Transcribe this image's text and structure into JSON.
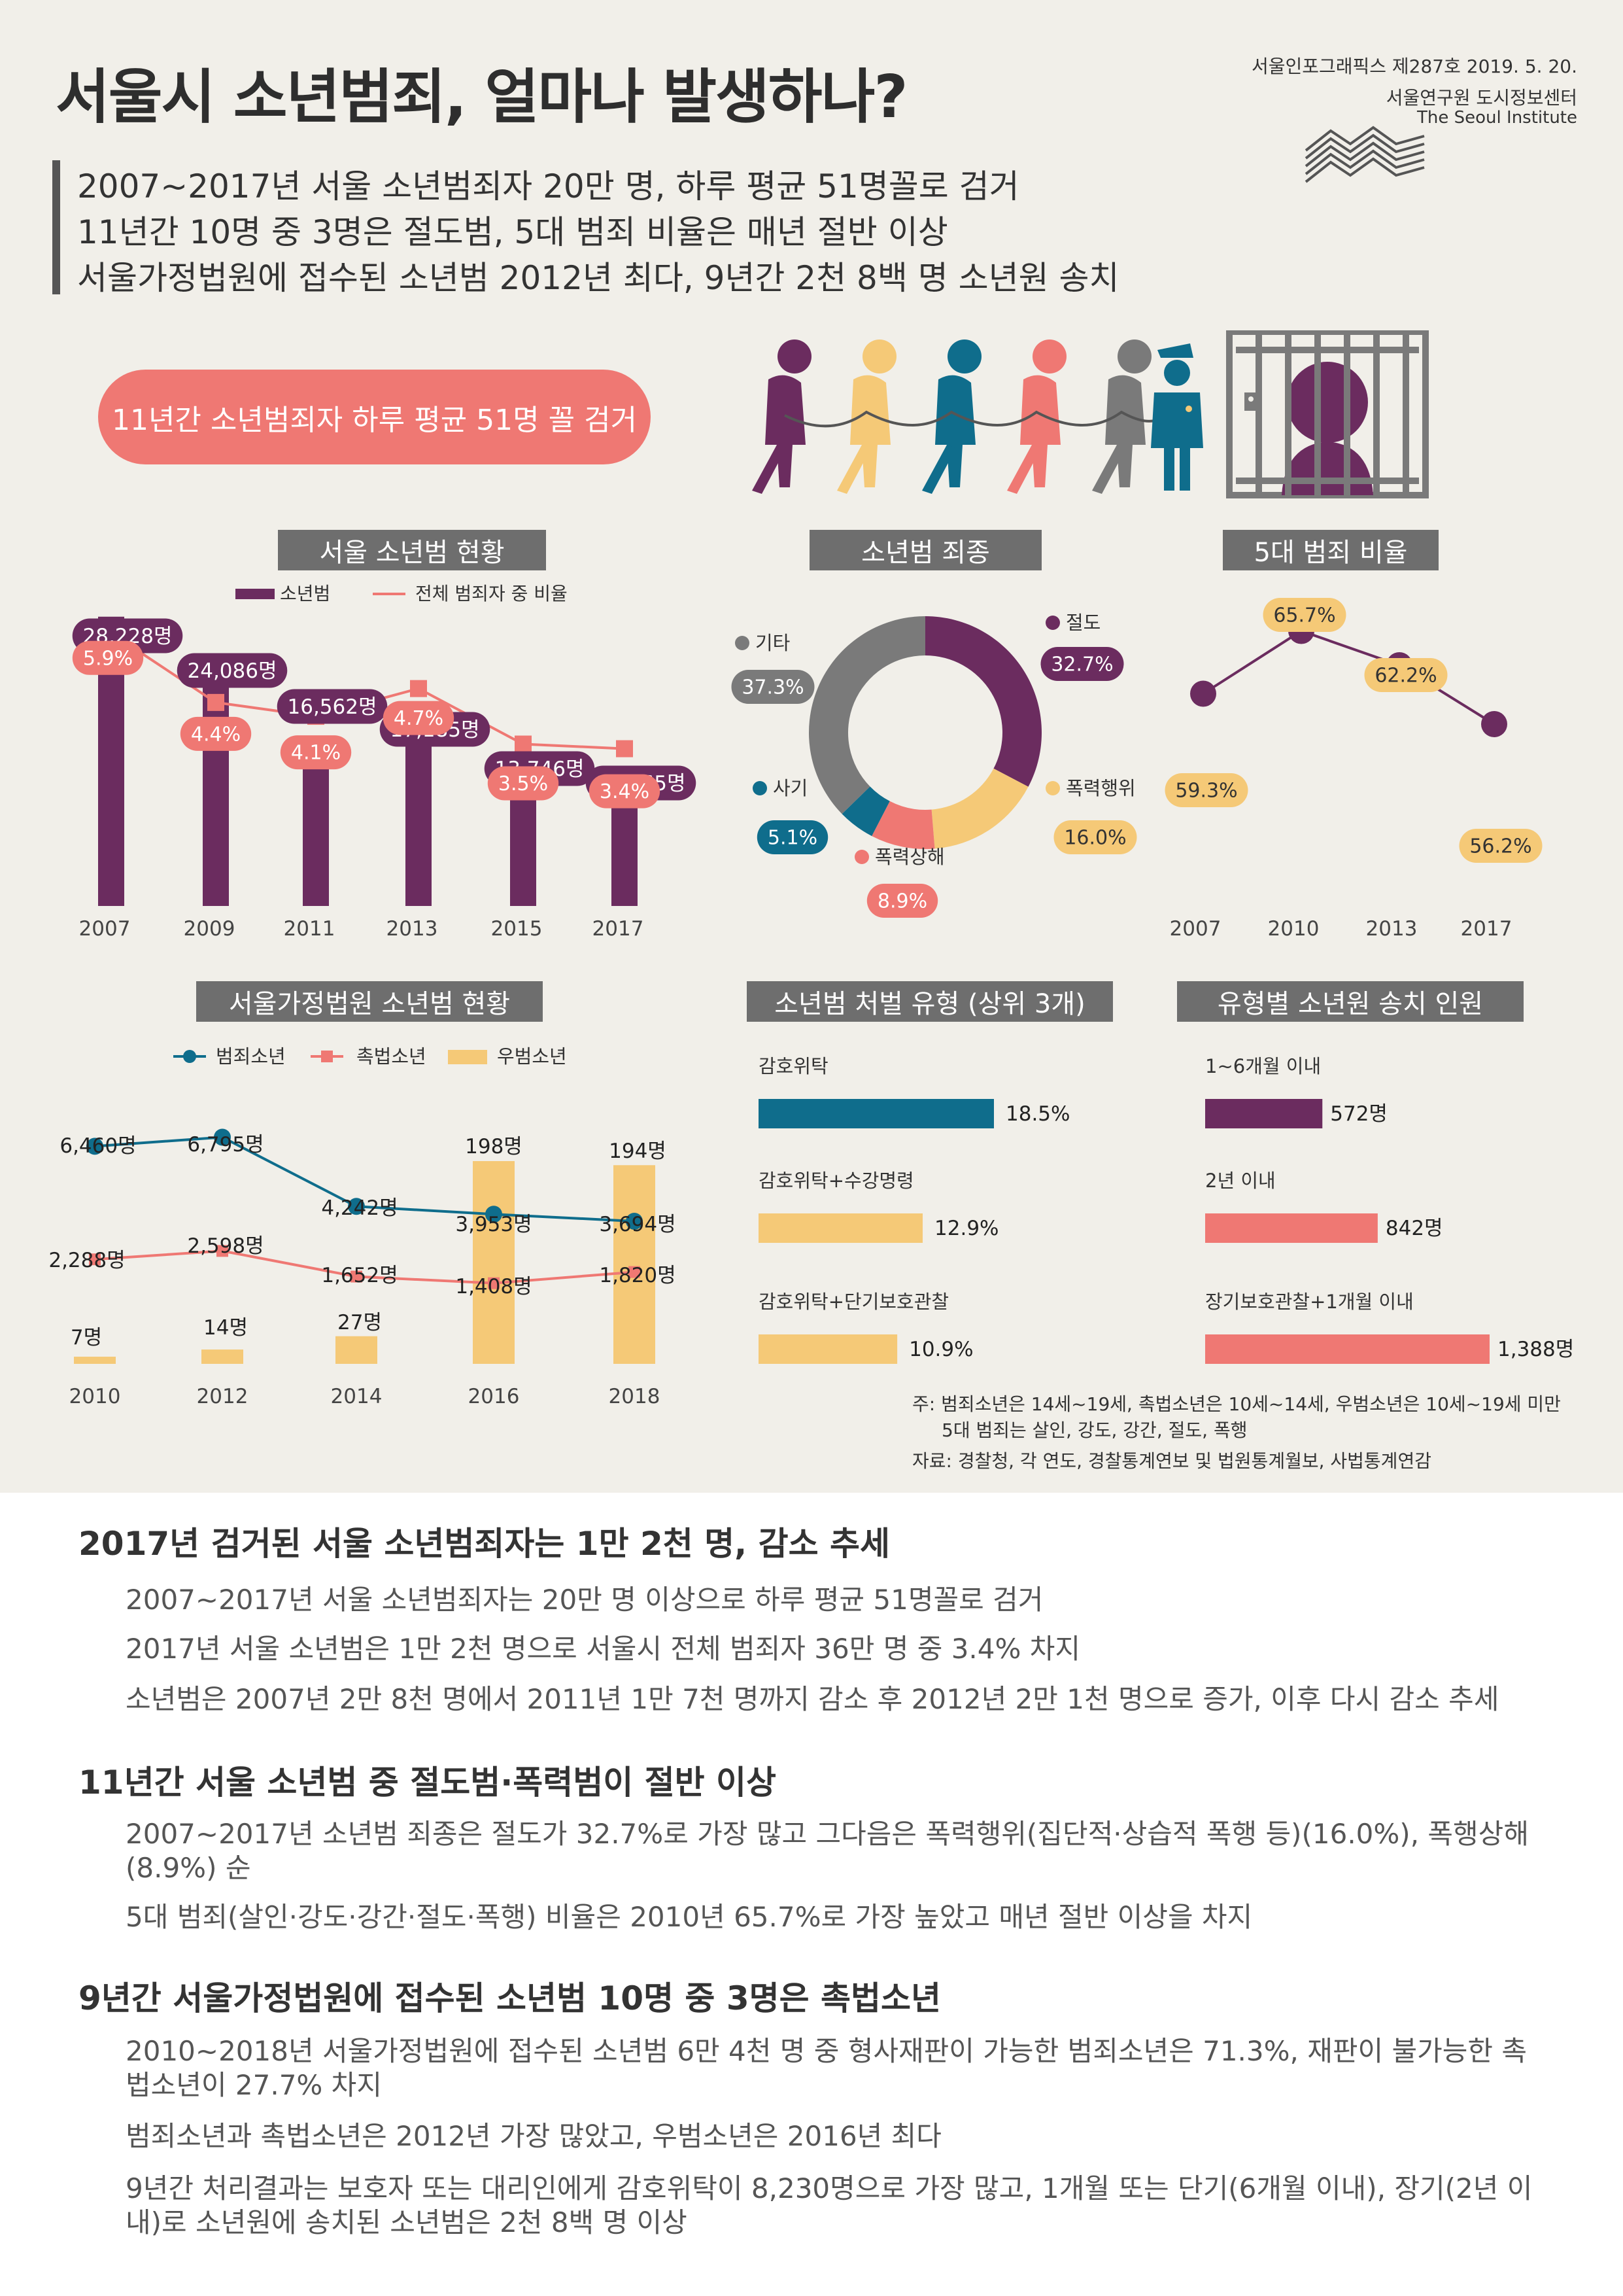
{
  "header": {
    "title": "서울시 소년범죄, 얼마나 발생하나?",
    "issue": "서울인포그래픽스 제287호 2019. 5. 20.",
    "institute_ko": "서울연구원 도시정보센터",
    "institute_en": "The Seoul Institute"
  },
  "summary": [
    "2007~2017년 서울 소년범죄자 20만 명, 하루 평균 51명꼴로 검거",
    "11년간 10명 중 3명은 절도범, 5대 범죄 비율은 매년 절반 이상",
    "서울가정법원에 접수된 소년범 2012년 최다, 9년간 2천 8백 명 소년원 송치"
  ],
  "highlight": "11년간 소년범죄자 하루 평균 51명 꼴 검거",
  "colors": {
    "purple": "#6b2c5f",
    "salmon": "#ef7873",
    "yellow": "#f5c977",
    "teal": "#0f6d8c",
    "gray": "#7a7a7a",
    "bg": "#f1efe9"
  },
  "chart_data": [
    {
      "type": "bar",
      "title": "서울 소년범 현황",
      "categories": [
        "2007",
        "2009",
        "2011",
        "2013",
        "2015",
        "2017"
      ],
      "series": [
        {
          "name": "소년범",
          "values": [
            28228,
            24086,
            16562,
            17185,
            13746,
            12265
          ],
          "labels": [
            "28,228명",
            "24,086명",
            "16,562명",
            "17,185명",
            "13,746명",
            "12,265명"
          ]
        },
        {
          "name": "전체 범죄자 중 비율",
          "type": "line",
          "values": [
            5.9,
            4.4,
            4.1,
            4.7,
            3.5,
            3.4
          ],
          "labels": [
            "5.9%",
            "4.4%",
            "4.1%",
            "4.7%",
            "3.5%",
            "3.4%"
          ]
        }
      ]
    },
    {
      "type": "pie",
      "title": "소년범 죄종",
      "categories": [
        "절도",
        "폭력행위",
        "폭력상해",
        "사기",
        "기타"
      ],
      "values": [
        32.7,
        16.0,
        8.9,
        5.1,
        37.3
      ],
      "labels": [
        "32.7%",
        "16.0%",
        "8.9%",
        "5.1%",
        "37.3%"
      ]
    },
    {
      "type": "line",
      "title": "5대 범죄 비율",
      "categories": [
        "2007",
        "2010",
        "2013",
        "2017"
      ],
      "values": [
        59.3,
        65.7,
        62.2,
        56.2
      ],
      "labels": [
        "59.3%",
        "65.7%",
        "62.2%",
        "56.2%"
      ]
    },
    {
      "type": "line",
      "title": "서울가정법원 소년범 현황",
      "categories": [
        "2010",
        "2012",
        "2014",
        "2016",
        "2018"
      ],
      "series": [
        {
          "name": "범죄소년",
          "values": [
            6460,
            6795,
            4242,
            3953,
            3694
          ],
          "labels": [
            "6,460명",
            "6,795명",
            "4,242명",
            "3,953명",
            "3,694명"
          ]
        },
        {
          "name": "촉법소년",
          "values": [
            2288,
            2598,
            1652,
            1408,
            1820
          ],
          "labels": [
            "2,288명",
            "2,598명",
            "1,652명",
            "1,408명",
            "1,820명"
          ]
        },
        {
          "name": "우범소년",
          "type": "bar",
          "values": [
            7,
            14,
            27,
            198,
            194
          ],
          "labels": [
            "7명",
            "14명",
            "27명",
            "198명",
            "194명"
          ]
        }
      ]
    },
    {
      "type": "bar",
      "title": "소년범 처벌 유형 (상위 3개)",
      "categories": [
        "감호위탁",
        "감호위탁+수강명령",
        "감호위탁+단기보호관찰"
      ],
      "values": [
        18.5,
        12.9,
        10.9
      ],
      "labels": [
        "18.5%",
        "12.9%",
        "10.9%"
      ]
    },
    {
      "type": "bar",
      "title": "유형별 소년원 송치 인원",
      "categories": [
        "1~6개월 이내",
        "2년 이내",
        "장기보호관찰+1개월 이내"
      ],
      "values": [
        572,
        842,
        1388
      ],
      "labels": [
        "572명",
        "842명",
        "1,388명"
      ]
    }
  ],
  "notes": {
    "note1": "주: 범죄소년은 14세~19세, 촉법소년은 10세~14세, 우범소년은 10세~19세 미만",
    "note2": "5대 범죄는 살인, 강도, 강간, 절도, 폭행",
    "source": "자료: 경찰청, 각 연도, 경찰통계연보 및 법원통계월보, 사법통계연감"
  },
  "sections": [
    {
      "heading": "2017년 검거된 서울 소년범죄자는 1만 2천 명, 감소 추세",
      "paragraphs": [
        "2007~2017년 서울 소년범죄자는 20만 명 이상으로 하루 평균 51명꼴로 검거",
        "2017년 서울 소년범은 1만 2천 명으로 서울시 전체 범죄자 36만 명 중 3.4% 차지",
        "소년범은 2007년 2만 8천 명에서 2011년 1만 7천 명까지 감소 후 2012년 2만 1천 명으로 증가, 이후 다시 감소 추세"
      ]
    },
    {
      "heading": "11년간 서울 소년범 중 절도범·폭력범이 절반 이상",
      "paragraphs": [
        "2007~2017년 소년범 죄종은 절도가 32.7%로 가장 많고 그다음은 폭력행위(집단적·상습적 폭행 등)(16.0%), 폭행상해(8.9%) 순",
        "5대 범죄(살인·강도·강간·절도·폭행) 비율은 2010년 65.7%로 가장 높았고 매년 절반 이상을 차지"
      ]
    },
    {
      "heading": "9년간 서울가정법원에 접수된 소년범 10명 중 3명은 촉법소년",
      "paragraphs": [
        "2010~2018년 서울가정법원에 접수된 소년범 6만 4천 명 중 형사재판이 가능한 범죄소년은 71.3%, 재판이 불가능한 촉법소년이 27.7% 차지",
        "범죄소년과 촉법소년은 2012년 가장 많았고, 우범소년은 2016년 최다",
        "9년간 처리결과는 보호자 또는 대리인에게 감호위탁이 8,230명으로 가장 많고, 1개월 또는 단기(6개월 이내), 장기(2년 이내)로 소년원에 송치된 소년범은 2천 8백 명 이상"
      ]
    }
  ]
}
